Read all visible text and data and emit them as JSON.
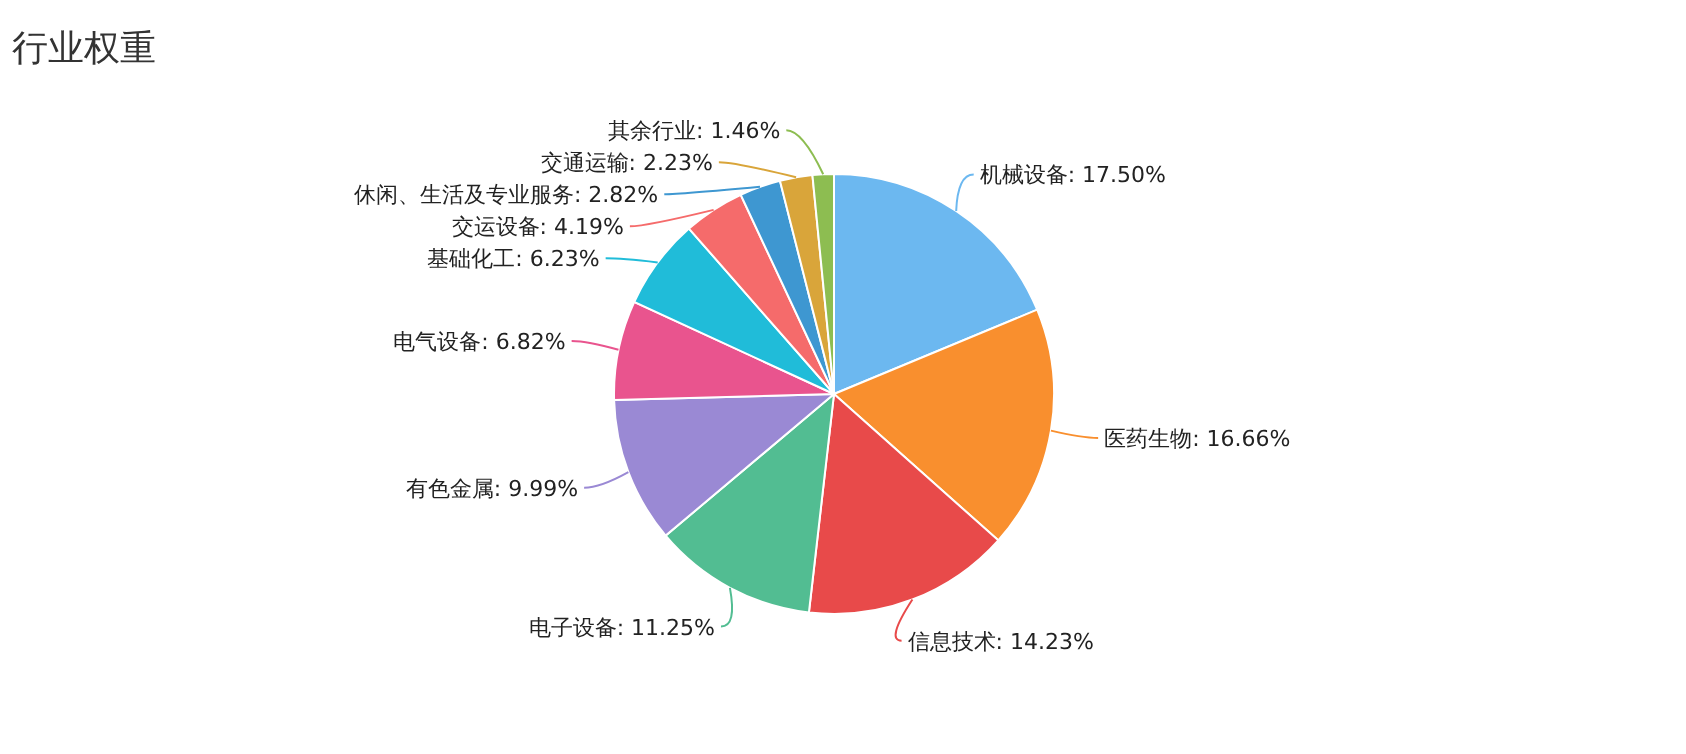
{
  "chart_data": {
    "type": "pie",
    "title": "行业权重",
    "categories": [
      "机械设备",
      "医药生物",
      "信息技术",
      "电子设备",
      "有色金属",
      "电气设备",
      "基础化工",
      "交运设备",
      "休闲、生活及专业服务",
      "交通运输",
      "其余行业"
    ],
    "values": [
      17.5,
      16.66,
      14.23,
      11.25,
      9.99,
      6.82,
      6.23,
      4.19,
      2.82,
      2.23,
      1.46
    ],
    "value_labels": [
      "17.50%",
      "16.66%",
      "14.23%",
      "11.25%",
      "9.99%",
      "6.82%",
      "6.23%",
      "4.19%",
      "2.82%",
      "2.23%",
      "1.46%"
    ],
    "colors": [
      "#6cb8f0",
      "#f98f2e",
      "#e84a4a",
      "#52bd92",
      "#9a89d4",
      "#e9548e",
      "#20bcd9",
      "#f56b6b",
      "#3e97d1",
      "#d9a53a",
      "#8dbd51"
    ]
  }
}
